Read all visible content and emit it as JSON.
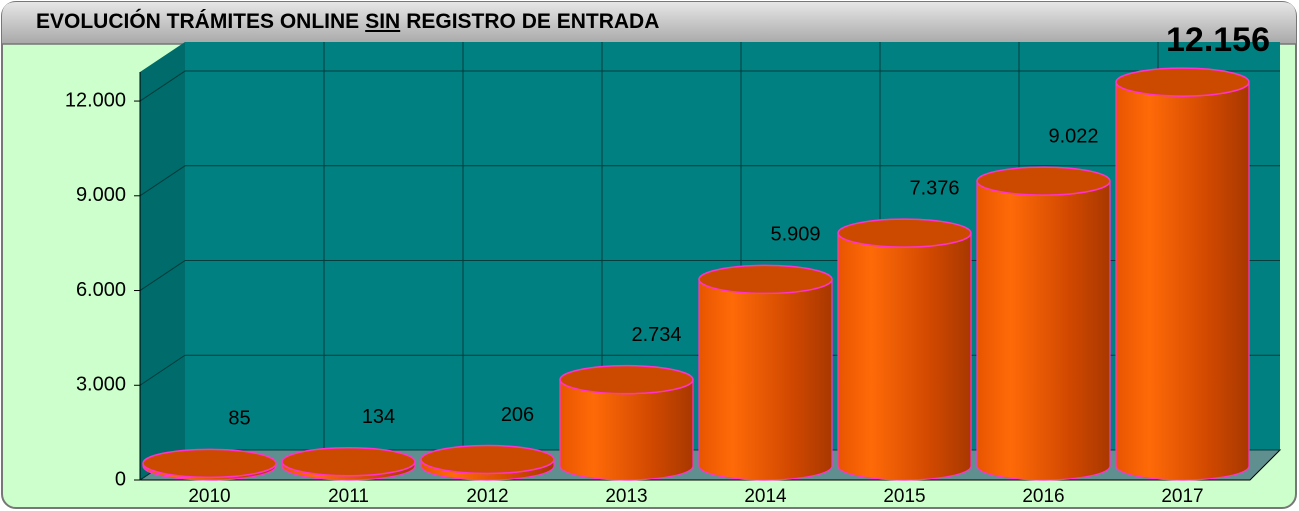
{
  "chart_data": {
    "type": "bar3d",
    "title_parts": [
      "EVOLUCIÓN TRÁMITES ONLINE",
      "SIN",
      "REGISTRO DE ENTRADA"
    ],
    "categories": [
      "2010",
      "2011",
      "2012",
      "2013",
      "2014",
      "2015",
      "2016",
      "2017"
    ],
    "values": [
      85,
      134,
      206,
      2734,
      5909,
      7376,
      9022,
      12156
    ],
    "value_labels": [
      "85",
      "134",
      "206",
      "2.734",
      "5.909",
      "7.376",
      "9.022",
      "12.156"
    ],
    "color": "#ff6600",
    "ylim": [
      0,
      13300
    ],
    "yticks": [
      0,
      {
        "value": 3000,
        "label": "3.000"
      },
      {
        "value": 6000,
        "label": "6.000"
      },
      {
        "value": 9000,
        "label": "9.000"
      },
      {
        "value": 12000,
        "label": "12.000"
      }
    ],
    "grid": true
  }
}
